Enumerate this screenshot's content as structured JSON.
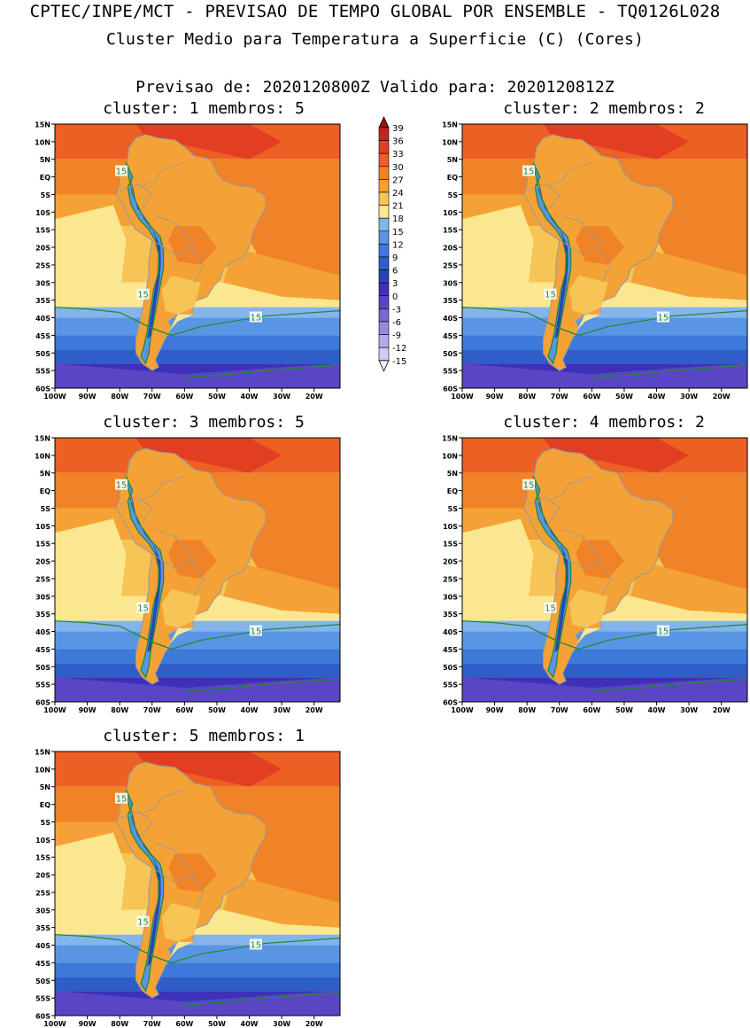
{
  "header": {
    "title_line1": "CPTEC/INPE/MCT - PREVISAO DE TEMPO GLOBAL POR ENSEMBLE - TQ0126L028",
    "title_line2": "Cluster Medio para Temperatura a Superficie (C) (Cores)",
    "subtitle": "Previsao de: 2020120800Z   Valido para: 2020120812Z"
  },
  "panels": [
    {
      "title": "cluster: 1  membros: 5"
    },
    {
      "title": "cluster: 2  membros: 2"
    },
    {
      "title": "cluster: 3  membros: 5"
    },
    {
      "title": "cluster: 4  membros: 2"
    },
    {
      "title": "cluster: 5  membros: 1"
    }
  ],
  "axes": {
    "lat_labels": [
      "15N",
      "10N",
      "5N",
      "EQ",
      "5S",
      "10S",
      "15S",
      "20S",
      "25S",
      "30S",
      "35S",
      "40S",
      "45S",
      "50S",
      "55S",
      "60S"
    ],
    "lon_labels": [
      "100W",
      "90W",
      "80W",
      "70W",
      "60W",
      "50W",
      "40W",
      "30W",
      "20W"
    ],
    "lat_range": [
      -60,
      15
    ],
    "lon_range": [
      -100,
      -12
    ]
  },
  "colorbar": {
    "labels": [
      "39",
      "36",
      "33",
      "30",
      "27",
      "24",
      "21",
      "18",
      "15",
      "12",
      "9",
      "6",
      "3",
      "0",
      "-3",
      "-6",
      "-9",
      "-12",
      "-15"
    ],
    "colors": [
      "#fbe6ff",
      "#d4c8f5",
      "#b7a8ec",
      "#9a87e0",
      "#7c66d2",
      "#5a45c4",
      "#3c31b8",
      "#2a43b2",
      "#2f5ec8",
      "#3c79d8",
      "#5a95e3",
      "#84b4ec",
      "#fbe78f",
      "#f7c456",
      "#f4a235",
      "#f08227",
      "#ed6023",
      "#e13e22",
      "#c32421",
      "#9c1418"
    ],
    "contour_label": "15"
  }
}
